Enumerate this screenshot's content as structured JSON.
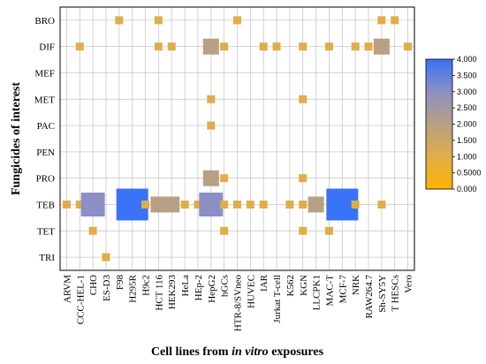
{
  "chart_data": {
    "type": "heatmap",
    "title": "",
    "xlabel": "Cell lines from in vitro exposures",
    "xlabel_parts": [
      {
        "text": "Cell lines from ",
        "italic": false
      },
      {
        "text": "in vitro",
        "italic": true
      },
      {
        "text": " exposures",
        "italic": false
      }
    ],
    "ylabel": "Fungicides of interest",
    "x_categories": [
      "ARVM",
      "CCC-HEL-1",
      "CHO",
      "ES-D3",
      "F98",
      "H295R",
      "H9c2",
      "HCT 116",
      "HEK293",
      "HeLa",
      "HEp-2",
      "HepG2",
      "hGCs",
      "HTR-8/SVneo",
      "HUVEC",
      "IAR",
      "Jurkat T-cell",
      "K562",
      "KGN",
      "LLCPK1",
      "MAC-T",
      "MCF-7",
      "NRK",
      "RAW264.7",
      "Sh-SY5Y",
      "T HESCs",
      "Vero"
    ],
    "y_categories": [
      "BRO",
      "DIF",
      "MEF",
      "MET",
      "PAC",
      "PEN",
      "PRO",
      "TEB",
      "TET",
      "TRI"
    ],
    "grid": true,
    "cells": [
      {
        "x": "F98",
        "y": "BRO",
        "value": 1
      },
      {
        "x": "HCT 116",
        "y": "BRO",
        "value": 1
      },
      {
        "x": "HTR-8/SVneo",
        "y": "BRO",
        "value": 1
      },
      {
        "x": "Sh-SY5Y",
        "y": "BRO",
        "value": 1
      },
      {
        "x": "T HESCs",
        "y": "BRO",
        "value": 1
      },
      {
        "x": "CCC-HEL-1",
        "y": "DIF",
        "value": 1
      },
      {
        "x": "HCT 116",
        "y": "DIF",
        "value": 1
      },
      {
        "x": "HEK293",
        "y": "DIF",
        "value": 1
      },
      {
        "x": "HepG2",
        "y": "DIF",
        "value": 2
      },
      {
        "x": "hGCs",
        "y": "DIF",
        "value": 1
      },
      {
        "x": "IAR",
        "y": "DIF",
        "value": 1
      },
      {
        "x": "Jurkat T-cell",
        "y": "DIF",
        "value": 1
      },
      {
        "x": "KGN",
        "y": "DIF",
        "value": 1
      },
      {
        "x": "MAC-T",
        "y": "DIF",
        "value": 1
      },
      {
        "x": "NRK",
        "y": "DIF",
        "value": 1
      },
      {
        "x": "RAW264.7",
        "y": "DIF",
        "value": 1
      },
      {
        "x": "Sh-SY5Y",
        "y": "DIF",
        "value": 2
      },
      {
        "x": "Vero",
        "y": "DIF",
        "value": 1
      },
      {
        "x": "HepG2",
        "y": "MET",
        "value": 1
      },
      {
        "x": "KGN",
        "y": "MET",
        "value": 1
      },
      {
        "x": "HepG2",
        "y": "PAC",
        "value": 1
      },
      {
        "x": "HepG2",
        "y": "PRO",
        "value": 2
      },
      {
        "x": "hGCs",
        "y": "PRO",
        "value": 1
      },
      {
        "x": "KGN",
        "y": "PRO",
        "value": 1
      },
      {
        "x": "ARVM",
        "y": "TEB",
        "value": 1
      },
      {
        "x": "CCC-HEL-1",
        "y": "TEB",
        "value": 1
      },
      {
        "x": "CHO",
        "y": "TEB",
        "value": 3
      },
      {
        "x": "H295R",
        "y": "TEB",
        "value": 4
      },
      {
        "x": "H9c2",
        "y": "TEB",
        "value": 1
      },
      {
        "x": "HCT 116",
        "y": "TEB",
        "value": 2
      },
      {
        "x": "HEK293",
        "y": "TEB",
        "value": 2
      },
      {
        "x": "HeLa",
        "y": "TEB",
        "value": 1
      },
      {
        "x": "HEp-2",
        "y": "TEB",
        "value": 1
      },
      {
        "x": "HepG2",
        "y": "TEB",
        "value": 3
      },
      {
        "x": "hGCs",
        "y": "TEB",
        "value": 1
      },
      {
        "x": "HTR-8/SVneo",
        "y": "TEB",
        "value": 1
      },
      {
        "x": "HUVEC",
        "y": "TEB",
        "value": 1
      },
      {
        "x": "IAR",
        "y": "TEB",
        "value": 1
      },
      {
        "x": "K562",
        "y": "TEB",
        "value": 1
      },
      {
        "x": "KGN",
        "y": "TEB",
        "value": 1
      },
      {
        "x": "LLCPK1",
        "y": "TEB",
        "value": 2
      },
      {
        "x": "MCF-7",
        "y": "TEB",
        "value": 4
      },
      {
        "x": "NRK",
        "y": "TEB",
        "value": 1
      },
      {
        "x": "Sh-SY5Y",
        "y": "TEB",
        "value": 1
      },
      {
        "x": "CHO",
        "y": "TET",
        "value": 1
      },
      {
        "x": "hGCs",
        "y": "TET",
        "value": 1
      },
      {
        "x": "KGN",
        "y": "TET",
        "value": 1
      },
      {
        "x": "MAC-T",
        "y": "TET",
        "value": 1
      },
      {
        "x": "ES-D3",
        "y": "TRI",
        "value": 1
      }
    ],
    "colorbar": {
      "min": 0,
      "max": 4,
      "ticks": [
        "0.000",
        "0.5000",
        "1.000",
        "1.500",
        "2.000",
        "2.500",
        "3.000",
        "3.500",
        "4.000"
      ],
      "color_stops": [
        {
          "value": 0,
          "color": "#ffb300"
        },
        {
          "value": 1,
          "color": "#e0ad48"
        },
        {
          "value": 2,
          "color": "#b8a085"
        },
        {
          "value": 3,
          "color": "#8b8fc4"
        },
        {
          "value": 4,
          "color": "#3a73f5"
        }
      ],
      "placement": "right"
    },
    "grid_color": "#c8c8c8"
  }
}
